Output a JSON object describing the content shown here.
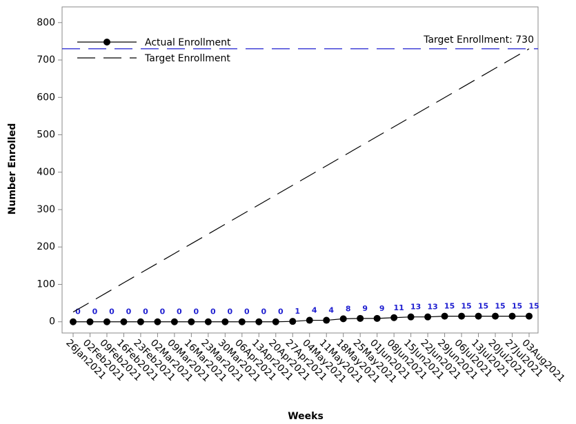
{
  "chart_data": {
    "type": "line",
    "x_label": "Weeks",
    "y_label": "Number Enrolled",
    "categories": [
      "26Jan2021",
      "02Feb2021",
      "09Feb2021",
      "16Feb2021",
      "23Feb2021",
      "02Mar2021",
      "09Mar2021",
      "16Mar2021",
      "23Mar2021",
      "30Mar2021",
      "06Apr2021",
      "13Apr2021",
      "20Apr2021",
      "27Apr2021",
      "04May2021",
      "11May2021",
      "18May2021",
      "25May2021",
      "01Jun2021",
      "08Jun2021",
      "15Jun2021",
      "22Jun2021",
      "29Jun2021",
      "06Jul2021",
      "13Jul2021",
      "20Jul2021",
      "27Jul2021",
      "03Aug2021"
    ],
    "series": [
      {
        "name": "Actual Enrollment",
        "color": "#000000",
        "style": "solid",
        "markers": true,
        "show_value_labels": true,
        "label_color": "#1f1fd0",
        "values": [
          0,
          0,
          0,
          0,
          0,
          0,
          0,
          0,
          0,
          0,
          0,
          0,
          0,
          1,
          4,
          4,
          8,
          9,
          9,
          11,
          13,
          13,
          15,
          15,
          15,
          15,
          15,
          15
        ]
      },
      {
        "name": "Target Enrollment",
        "color": "#000000",
        "style": "dashed",
        "markers": false,
        "show_value_labels": false,
        "values": [
          26.1,
          52.1,
          78.2,
          104.3,
          130.4,
          156.4,
          182.5,
          208.6,
          234.6,
          260.7,
          286.8,
          312.9,
          338.9,
          365,
          391.1,
          417.1,
          443.2,
          469.3,
          495.4,
          521.4,
          547.5,
          573.6,
          599.6,
          625.7,
          651.8,
          677.9,
          703.9,
          730
        ]
      }
    ],
    "reference_line": {
      "value": 730,
      "color": "#1f1fd0",
      "label": "Target Enrollment: 730"
    },
    "ylim": [
      -30,
      842
    ],
    "yticks": [
      0,
      100,
      200,
      300,
      400,
      500,
      600,
      700,
      800
    ],
    "legend": "upper left"
  }
}
